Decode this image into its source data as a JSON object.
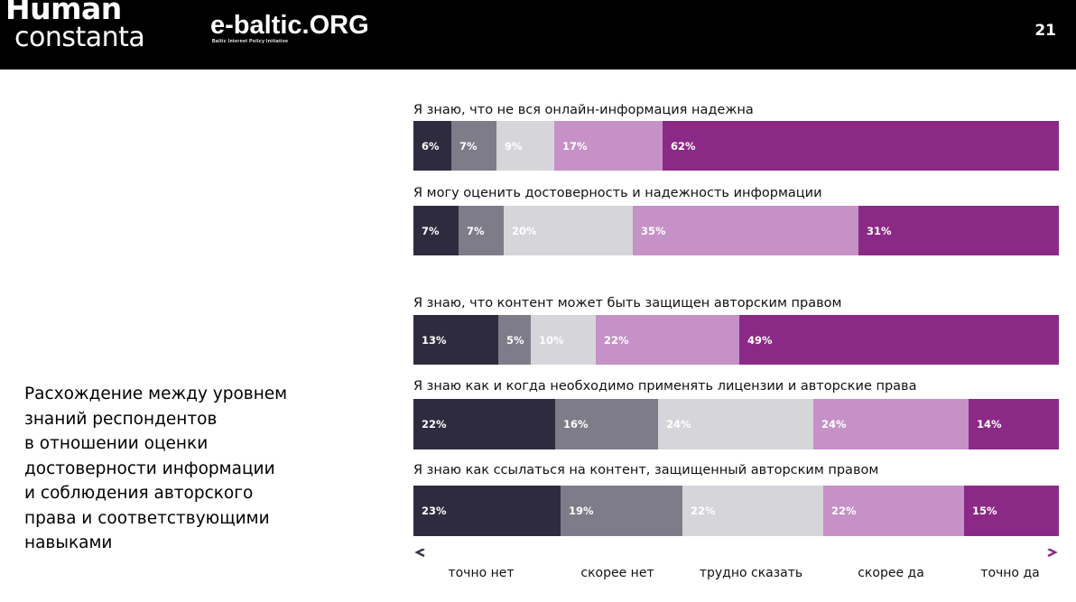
{
  "header": {
    "logo_human_line1": "Human",
    "logo_human_line2": "constanta",
    "logo_ebaltic": "e-baltic.ORG",
    "logo_ebaltic_sub": "Baltic Internet Policy Initiative",
    "page_number": "21",
    "background": "#000000"
  },
  "side_text": "Расхождение между уровнем\nзнаний респондентов\nв отношении оценки\nдостоверности информации\nи соблюдения авторского\nправа и соответствующими\nнавыками",
  "chart_data": {
    "type": "bar",
    "orientation": "horizontal",
    "stacked": true,
    "normalized": true,
    "categories": [
      "Я знаю, что не вся онлайн-информация надежна",
      "Я могу оценить достоверность и надежность информации",
      "Я знаю, что контент может быть защищен авторским правом",
      "Я знаю как и когда необходимо применять лицензии и авторские права",
      "Я знаю как ссылаться на контент, защищенный авторским правом"
    ],
    "series": [
      {
        "name": "точно нет",
        "color": "#2e2b3e",
        "label_color": "#ffffff",
        "values": [
          6,
          7,
          13,
          22,
          23
        ]
      },
      {
        "name": "скорее нет",
        "color": "#7f7c89",
        "label_color": "#ffffff",
        "values": [
          7,
          7,
          5,
          16,
          19
        ]
      },
      {
        "name": "трудно сказать",
        "color": "#d6d5da",
        "label_color": "#ffffff",
        "values": [
          9,
          20,
          10,
          24,
          22
        ]
      },
      {
        "name": "скорее да",
        "color": "#c591c6",
        "label_color": "#ffffff",
        "values": [
          17,
          35,
          22,
          24,
          22
        ]
      },
      {
        "name": "точно да",
        "color": "#8b2a86",
        "label_color": "#ffffff",
        "values": [
          62,
          31,
          49,
          14,
          15
        ]
      }
    ],
    "value_suffix": "%",
    "legend_placement": "bottom",
    "legend_style": "gradient arrow scale"
  }
}
